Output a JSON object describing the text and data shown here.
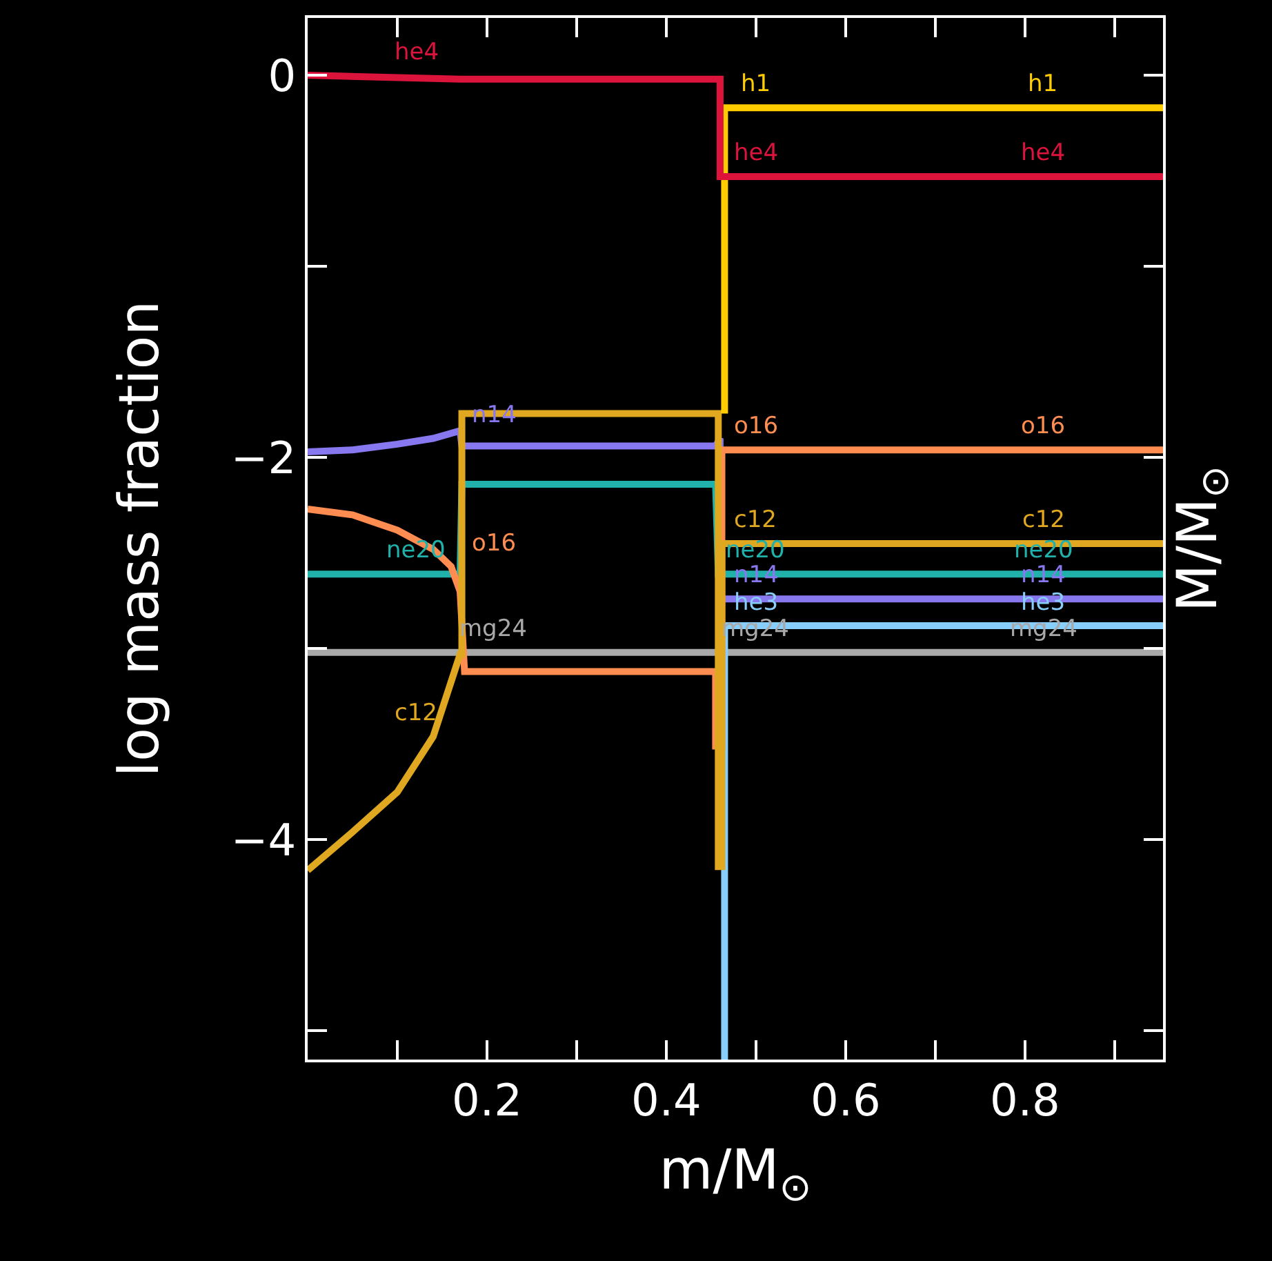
{
  "chart_data": {
    "type": "line",
    "xlabel": "m/M$_{⊙}$",
    "ylabel": "log mass fraction",
    "y2label": "M/M$_{⊙}$",
    "xlim": [
      0,
      0.954
    ],
    "ylim": [
      -5.15,
      0.3
    ],
    "xticks": [
      {
        "value": 0.1,
        "label": null
      },
      0.2,
      {
        "value": 0.3,
        "label": null
      },
      0.4,
      {
        "value": 0.5,
        "label": null
      },
      0.6,
      {
        "value": 0.7,
        "label": null
      },
      0.8,
      {
        "value": 0.9,
        "label": null
      }
    ],
    "yticks": [
      {
        "value": -5,
        "label": null
      },
      -4,
      {
        "value": -3,
        "label": null
      },
      -2,
      {
        "value": -1,
        "label": null
      },
      0
    ],
    "grid": false,
    "legend": false,
    "marker": "none",
    "line_style": "solid",
    "series": [
      {
        "name": "mg24",
        "color": "#a9a9a9",
        "x": [
          0,
          0.954
        ],
        "values": [
          -3.02,
          -3.02
        ]
      },
      {
        "name": "he3",
        "color": "#87cefa",
        "x": [
          0.465,
          0.465,
          0.954
        ],
        "values": [
          -5.15,
          -2.88,
          -2.88
        ]
      },
      {
        "name": "n14",
        "color": "#8878f0",
        "x": [
          0,
          0.05,
          0.1,
          0.14,
          0.17,
          0.172,
          0.455,
          0.46,
          0.46,
          0.954
        ],
        "values": [
          -1.97,
          -1.96,
          -1.93,
          -1.9,
          -1.86,
          -1.94,
          -1.94,
          -1.9,
          -2.74,
          -2.74
        ]
      },
      {
        "name": "ne20",
        "color": "#20b2aa",
        "x": [
          0,
          0.17,
          0.172,
          0.455,
          0.458,
          0.954
        ],
        "values": [
          -2.61,
          -2.61,
          -2.14,
          -2.14,
          -2.61,
          -2.61
        ]
      },
      {
        "name": "o16",
        "color": "#ff8c50",
        "x": [
          0,
          0.05,
          0.1,
          0.14,
          0.16,
          0.17,
          0.175,
          0.455,
          0.455,
          0.462,
          0.462,
          0.954
        ],
        "values": [
          -2.27,
          -2.3,
          -2.38,
          -2.48,
          -2.57,
          -2.7,
          -3.12,
          -3.12,
          -3.51,
          -3.51,
          -1.96,
          -1.96
        ]
      },
      {
        "name": "c12",
        "color": "#e0a820",
        "x": [
          0,
          0.05,
          0.1,
          0.14,
          0.17,
          0.172,
          0.172,
          0.458,
          0.458,
          0.462,
          0.462,
          0.954
        ],
        "values": [
          -4.16,
          -3.96,
          -3.75,
          -3.46,
          -3.03,
          -3.03,
          -1.77,
          -1.77,
          -4.14,
          -4.14,
          -2.45,
          -2.45
        ]
      },
      {
        "name": "h1",
        "color": "#ffcc00",
        "x": [
          0.465,
          0.465,
          0.954
        ],
        "values": [
          -1.77,
          -0.17,
          -0.17
        ]
      },
      {
        "name": "he4",
        "color": "#dc143c",
        "x": [
          0,
          0.17,
          0.46,
          0.46,
          0.954
        ],
        "values": [
          0,
          -0.02,
          -0.02,
          -0.53,
          -0.53
        ]
      }
    ]
  }
}
